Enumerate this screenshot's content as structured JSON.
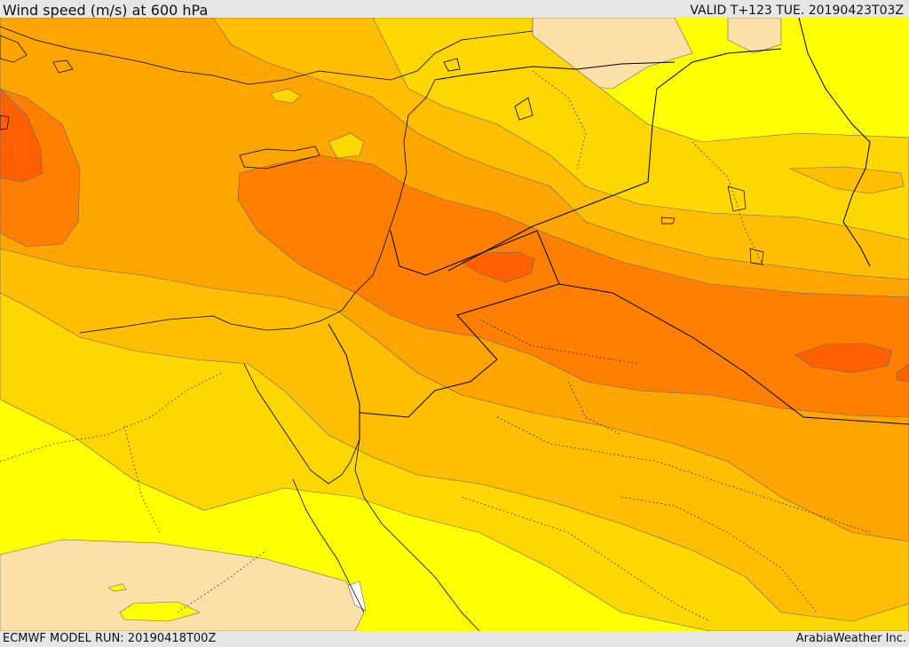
{
  "header": {
    "title": "Wind speed (m/s) at 600 hPa",
    "valid": "VALID T+123 TUE. 20190423T03Z"
  },
  "footer": {
    "model_run": "ECMWF MODEL RUN: 20190418T00Z",
    "credit": "ArabiaWeather Inc."
  },
  "map": {
    "field": "wind-speed",
    "colors": {
      "band_lightest": "#fde0a8",
      "band_1": "#ffff00",
      "band_2": "#ffd700",
      "band_3": "#ffbf00",
      "band_4": "#ffa500",
      "band_5": "#ff8000",
      "band_6": "#ff6000",
      "contour": "#666666",
      "border": "#000000"
    }
  }
}
